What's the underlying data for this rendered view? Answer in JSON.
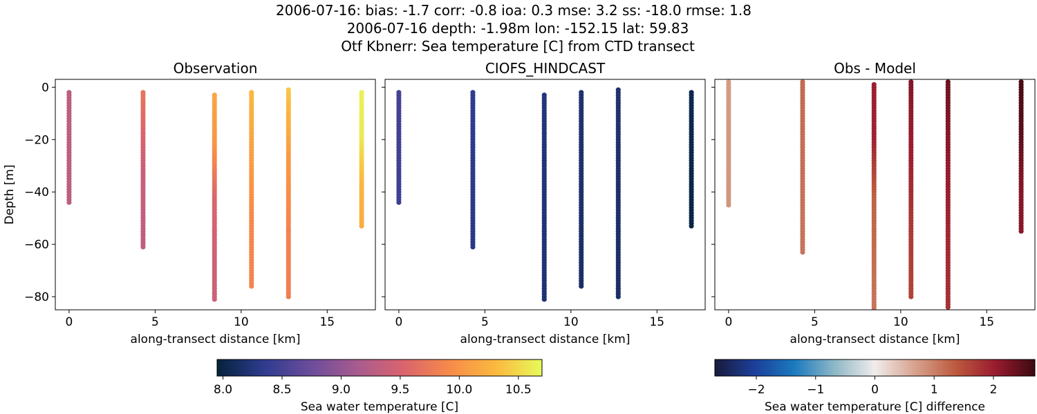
{
  "header": {
    "line1": "2006-07-16: bias: -1.7  corr: -0.8  ioa: 0.3  mse: 3.2  ss: -18.0  rmse: 1.8",
    "line2": "2006-07-16 depth: -1.98m lon: -152.15 lat: 59.83",
    "line3": "Otf Kbnerr: Sea temperature [C] from CTD transect"
  },
  "chart_data": [
    {
      "type": "scatter",
      "title": "Observation",
      "xlabel": "along-transect distance [km]",
      "ylabel": "Depth [m]",
      "xlim": [
        -0.8,
        17.8
      ],
      "ylim": [
        -85,
        3
      ],
      "xticks": [
        0,
        5,
        10,
        15
      ],
      "yticks": [
        0,
        -20,
        -40,
        -60,
        -80
      ],
      "colormap": "thermal",
      "color_range": [
        7.95,
        10.7
      ],
      "profiles": [
        {
          "x": 0.0,
          "top": -2,
          "bottom": -44.5,
          "values": [
            9.3,
            9.3
          ]
        },
        {
          "x": 4.3,
          "top": -2,
          "bottom": -61,
          "values": [
            9.7,
            9.4,
            9.3
          ]
        },
        {
          "x": 8.45,
          "top": -3,
          "bottom": -81,
          "values": [
            10.15,
            10.0,
            9.55,
            9.45,
            9.4
          ]
        },
        {
          "x": 10.6,
          "top": -2,
          "bottom": -76,
          "values": [
            10.3,
            10.1,
            9.9,
            9.85
          ]
        },
        {
          "x": 12.75,
          "top": -1,
          "bottom": -80,
          "values": [
            10.4,
            10.05,
            9.85,
            9.8
          ]
        },
        {
          "x": 17.0,
          "top": -2,
          "bottom": -53.5,
          "values": [
            10.65,
            10.6,
            10.3,
            10.2
          ]
        }
      ]
    },
    {
      "type": "scatter",
      "title": "CIOFS_HINDCAST",
      "xlabel": "along-transect distance [km]",
      "ylabel": "",
      "xlim": [
        -0.8,
        17.8
      ],
      "ylim": [
        -85,
        3
      ],
      "xticks": [
        0,
        5,
        10,
        15
      ],
      "yticks": [
        0,
        -20,
        -40,
        -60,
        -80
      ],
      "colormap": "thermal",
      "color_range": [
        7.95,
        10.7
      ],
      "profiles": [
        {
          "x": 0.0,
          "top": -2,
          "bottom": -44.5,
          "values": [
            8.5,
            8.45
          ]
        },
        {
          "x": 4.3,
          "top": -2,
          "bottom": -61,
          "values": [
            8.35,
            8.3
          ]
        },
        {
          "x": 8.45,
          "top": -3,
          "bottom": -81,
          "values": [
            8.25,
            8.2
          ]
        },
        {
          "x": 10.6,
          "top": -2,
          "bottom": -76,
          "values": [
            8.2,
            8.15
          ]
        },
        {
          "x": 12.75,
          "top": -1,
          "bottom": -80,
          "values": [
            8.2,
            8.15
          ]
        },
        {
          "x": 17.0,
          "top": -2,
          "bottom": -53.5,
          "values": [
            8.05,
            8.0
          ]
        }
      ]
    },
    {
      "type": "scatter",
      "title": "Obs - Model",
      "xlabel": "along-transect distance [km]",
      "ylabel": "",
      "xlim": [
        -0.8,
        17.8
      ],
      "ylim": [
        -85,
        3
      ],
      "xticks": [
        0,
        5,
        10,
        15
      ],
      "yticks": [
        0,
        -20,
        -40,
        -60,
        -80
      ],
      "colormap": "balance",
      "color_range": [
        -2.7,
        2.7
      ],
      "profiles": [
        {
          "x": 0.0,
          "top": 2,
          "bottom": -45,
          "values": [
            0.75,
            0.8
          ]
        },
        {
          "x": 4.3,
          "top": 2,
          "bottom": -63.5,
          "values": [
            1.2,
            1.1
          ]
        },
        {
          "x": 8.45,
          "top": 1,
          "bottom": -85,
          "values": [
            2.0,
            1.95,
            1.3,
            1.2,
            1.1
          ]
        },
        {
          "x": 10.6,
          "top": 2,
          "bottom": -80,
          "values": [
            2.2,
            2.0,
            1.7,
            1.6
          ]
        },
        {
          "x": 12.75,
          "top": 2,
          "bottom": -84,
          "values": [
            2.35,
            2.1,
            1.9,
            1.8
          ]
        },
        {
          "x": 17.0,
          "top": 2,
          "bottom": -55,
          "values": [
            2.6,
            2.5,
            2.2,
            2.15
          ]
        }
      ]
    }
  ],
  "colorbars": [
    {
      "label": "Sea water temperature [C]",
      "range": [
        7.95,
        10.7
      ],
      "ticks": [
        "8.0",
        "8.5",
        "9.0",
        "9.5",
        "10.0",
        "10.5"
      ],
      "tick_values": [
        8.0,
        8.5,
        9.0,
        9.5,
        10.0,
        10.5
      ],
      "colormap": "thermal"
    },
    {
      "label": "Sea water temperature [C] difference",
      "range": [
        -2.7,
        2.7
      ],
      "ticks": [
        "−2",
        "−1",
        "0",
        "1",
        "2"
      ],
      "tick_values": [
        -2,
        -1,
        0,
        1,
        2
      ],
      "colormap": "balance"
    }
  ],
  "colors": {
    "thermal": [
      "#04233a",
      "#2e3b8f",
      "#6a4c9c",
      "#a75b8f",
      "#d9636e",
      "#f78a49",
      "#fbb83f",
      "#e7fa5a"
    ],
    "balance": [
      "#191b3b",
      "#1b3f9b",
      "#1c7bbf",
      "#8fb8c6",
      "#f0eceb",
      "#d7a28e",
      "#bd5b3e",
      "#9a1c2f",
      "#3c0911"
    ]
  }
}
